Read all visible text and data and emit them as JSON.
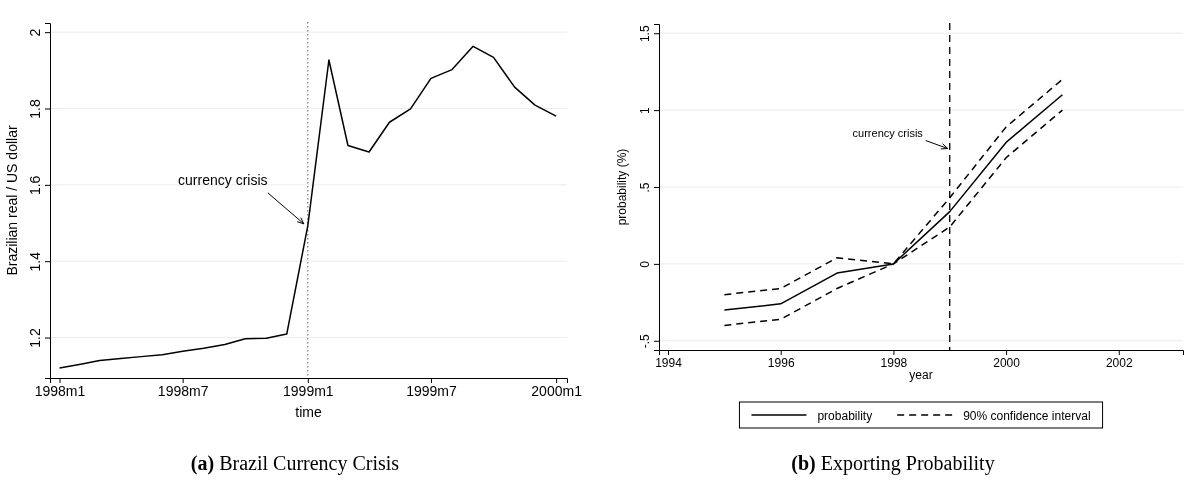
{
  "chart_data": [
    {
      "type": "line",
      "title": "(a) Brazil Currency Crisis",
      "xlabel": "time",
      "ylabel": "Brazilian real / US dollar",
      "x": [
        "1998-01",
        "1998-02",
        "1998-03",
        "1998-04",
        "1998-05",
        "1998-06",
        "1998-07",
        "1998-08",
        "1998-09",
        "1998-10",
        "1998-11",
        "1998-12",
        "1999-01",
        "1999-02",
        "1999-03",
        "1999-04",
        "1999-05",
        "1999-06",
        "1999-07",
        "1999-08",
        "1999-09",
        "1999-10",
        "1999-11",
        "1999-12",
        "2000-01"
      ],
      "series": [
        {
          "color": "#000000",
          "values": [
            1.12,
            1.13,
            1.14,
            1.145,
            1.15,
            1.155,
            1.164,
            1.172,
            1.182,
            1.197,
            1.198,
            1.209,
            1.493,
            1.927,
            1.703,
            1.686,
            1.764,
            1.799,
            1.879,
            1.902,
            1.963,
            1.934,
            1.856,
            1.809,
            1.78
          ]
        }
      ],
      "xlim": [
        "1997-12-18",
        "2000-01-17"
      ],
      "xticks": [
        {
          "value": "1998-01",
          "label": "1998m1"
        },
        {
          "value": "1998-07",
          "label": "1998m7"
        },
        {
          "value": "1999-01",
          "label": "1999m1"
        },
        {
          "value": "1999-07",
          "label": "1999m7"
        },
        {
          "value": "2000-01",
          "label": "2000m1"
        }
      ],
      "ylim": [
        1.094,
        2.024
      ],
      "yticks": [
        1.2,
        1.4,
        1.6,
        1.8,
        2
      ],
      "grid": "y",
      "legend": false,
      "line_style": "solid",
      "ref_lines": [
        {
          "axis": "x",
          "value": "1999-01",
          "color": "#555555",
          "line_style": "dotted"
        }
      ],
      "annotations": [
        {
          "text": "currency crisis",
          "x": "1999-01",
          "y": 1.49
        }
      ]
    },
    {
      "type": "line",
      "title": "(b) Exporting Probability",
      "xlabel": "year",
      "ylabel": "probability (%)",
      "x": [
        1995,
        1996,
        1997,
        1998,
        1999,
        2000,
        2001
      ],
      "series": [
        {
          "name": "probability",
          "color": "#000000",
          "line_style": "solid",
          "values": [
            -0.3,
            -0.26,
            -0.06,
            0,
            0.34,
            0.79,
            1.1
          ]
        },
        {
          "name": "90% confidence interval",
          "color": "#000000",
          "line_style": "dashed",
          "values": [
            -0.2,
            -0.16,
            0.04,
            0,
            0.43,
            0.89,
            1.2
          ]
        },
        {
          "color": "#000000",
          "line_style": "dashed",
          "values": [
            -0.4,
            -0.36,
            -0.16,
            0,
            0.24,
            0.69,
            1.0
          ]
        }
      ],
      "xlim": [
        1993.84,
        2003.14
      ],
      "xticks": [
        1994,
        1996,
        1998,
        2000,
        2002
      ],
      "ylim": [
        -0.56,
        1.56
      ],
      "yticks": [
        {
          "value": -0.5,
          "label": "-.5"
        },
        0,
        {
          "value": 0.5,
          "label": ".5"
        },
        1,
        1.5
      ],
      "grid": "y",
      "legend": "bottom",
      "ref_lines": [
        {
          "axis": "x",
          "value": 1999,
          "color": "#000000",
          "line_style": "dashed"
        }
      ],
      "annotations": [
        {
          "text": "currency crisis",
          "x": 1999,
          "y": 0.75
        }
      ]
    }
  ]
}
